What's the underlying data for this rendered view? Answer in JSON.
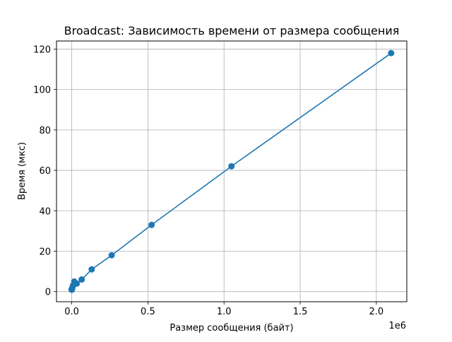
{
  "chart_data": {
    "type": "line",
    "title": "Broadcast: Зависимость времени от размера сообщения",
    "xlabel": "Размер сообщения (байт)",
    "ylabel": "Время (мкс)",
    "x_offset_text": "1e6",
    "xlim": [
      -100000,
      2200000
    ],
    "ylim": [
      -5,
      124
    ],
    "x_ticks": [
      0,
      500000,
      1000000,
      1500000,
      2000000
    ],
    "x_tick_labels": [
      "0.0",
      "0.5",
      "1.0",
      "1.5",
      "2.0"
    ],
    "y_ticks": [
      0,
      20,
      40,
      60,
      80,
      100,
      120
    ],
    "y_tick_labels": [
      "0",
      "20",
      "40",
      "60",
      "80",
      "100",
      "120"
    ],
    "grid": true,
    "marker": "circle",
    "color": "#1f77b4",
    "series": [
      {
        "x": [
          1,
          2,
          4,
          8,
          16,
          32,
          64,
          128,
          256,
          512,
          1024,
          2048,
          4096,
          8192,
          16384,
          32768,
          65536,
          131072,
          262144,
          524288,
          1048576,
          2097152
        ],
        "y": [
          1,
          1,
          1,
          1,
          1,
          1,
          1,
          1,
          1,
          1,
          1,
          1.5,
          2,
          3,
          5,
          4,
          6,
          11,
          18,
          33,
          62,
          118
        ]
      }
    ]
  }
}
